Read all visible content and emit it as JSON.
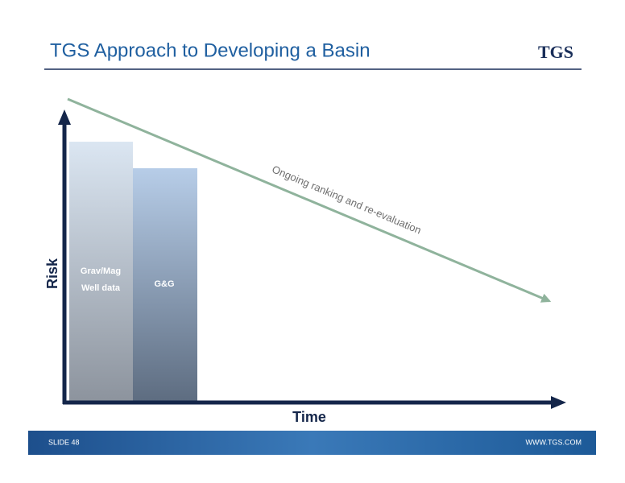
{
  "header": {
    "title": "TGS Approach to Developing a Basin",
    "logo": "TGS"
  },
  "diagram": {
    "y_axis_label": "Risk",
    "x_axis_label": "Time",
    "blocks": [
      {
        "lines": [
          "Grav/Mag",
          "Well data"
        ]
      },
      {
        "lines": [
          "G&G"
        ]
      }
    ],
    "trend_label": "Ongoing ranking and re-evaluation"
  },
  "footer": {
    "slide": "SLIDE 48",
    "website": "WWW.TGS.COM"
  }
}
